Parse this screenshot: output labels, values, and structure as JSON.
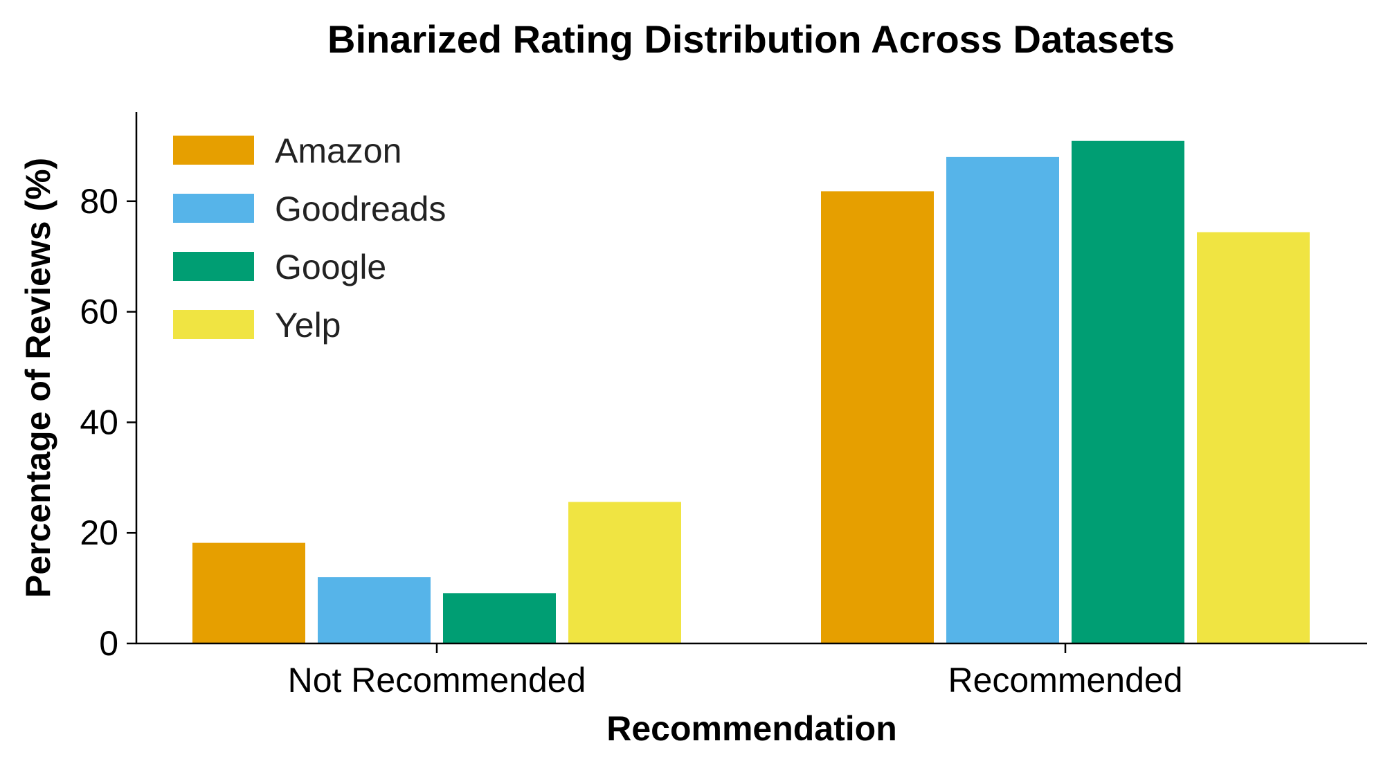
{
  "chart_data": {
    "type": "bar",
    "title": "Binarized Rating Distribution Across Datasets",
    "xlabel": "Recommendation",
    "ylabel": "Percentage of Reviews (%)",
    "categories": [
      "Not Recommended",
      "Recommended"
    ],
    "series": [
      {
        "name": "Amazon",
        "color": "#E69F00",
        "values": [
          18.2,
          81.8
        ]
      },
      {
        "name": "Goodreads",
        "color": "#56B4E9",
        "values": [
          12.0,
          88.0
        ]
      },
      {
        "name": "Google",
        "color": "#009E73",
        "values": [
          9.1,
          90.9
        ]
      },
      {
        "name": "Yelp",
        "color": "#F0E442",
        "values": [
          25.6,
          74.4
        ]
      }
    ],
    "ylim": [
      0,
      96
    ],
    "yticks": [
      0,
      20,
      40,
      60,
      80
    ],
    "grid": false,
    "legend_position": "top-left"
  }
}
